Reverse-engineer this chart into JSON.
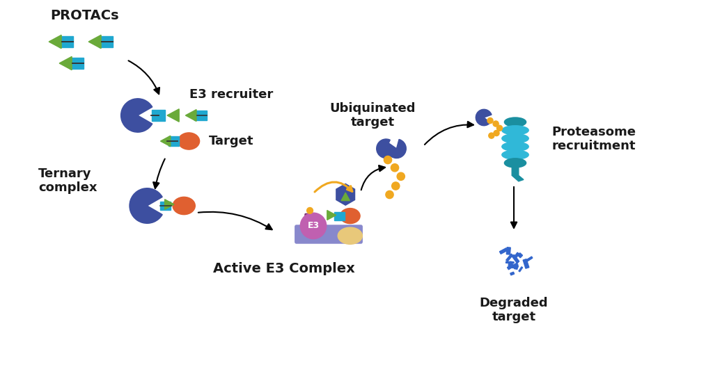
{
  "bg_color": "#ffffff",
  "text_color": "#1a1a1a",
  "colors": {
    "dark_blue": "#3d4fa0",
    "medium_blue": "#4d6bb5",
    "light_blue": "#2ab0d0",
    "teal": "#1a8fa0",
    "green": "#6aaa3a",
    "orange": "#e06030",
    "gold": "#f0a820",
    "purple": "#c060b0",
    "dark_purple": "#7a3070",
    "light_blue2": "#30b8d8",
    "lavender": "#8888cc",
    "beige": "#e8c87a",
    "cyan_rect": "#20a8d0",
    "dark_teal": "#1a7888",
    "degraded_blue": "#3366cc"
  },
  "labels": {
    "protacs": "PROTACs",
    "e3_recruiter": "E3 recruiter",
    "target": "Target",
    "ternary": "Ternary\ncomplex",
    "active_e3": "Active E3 Complex",
    "ubiquitinated": "Ubiquinated\ntarget",
    "proteasome": "Proteasome\nrecruitment",
    "degraded": "Degraded\ntarget"
  },
  "font_sizes": {
    "label": 13,
    "title": 14
  }
}
